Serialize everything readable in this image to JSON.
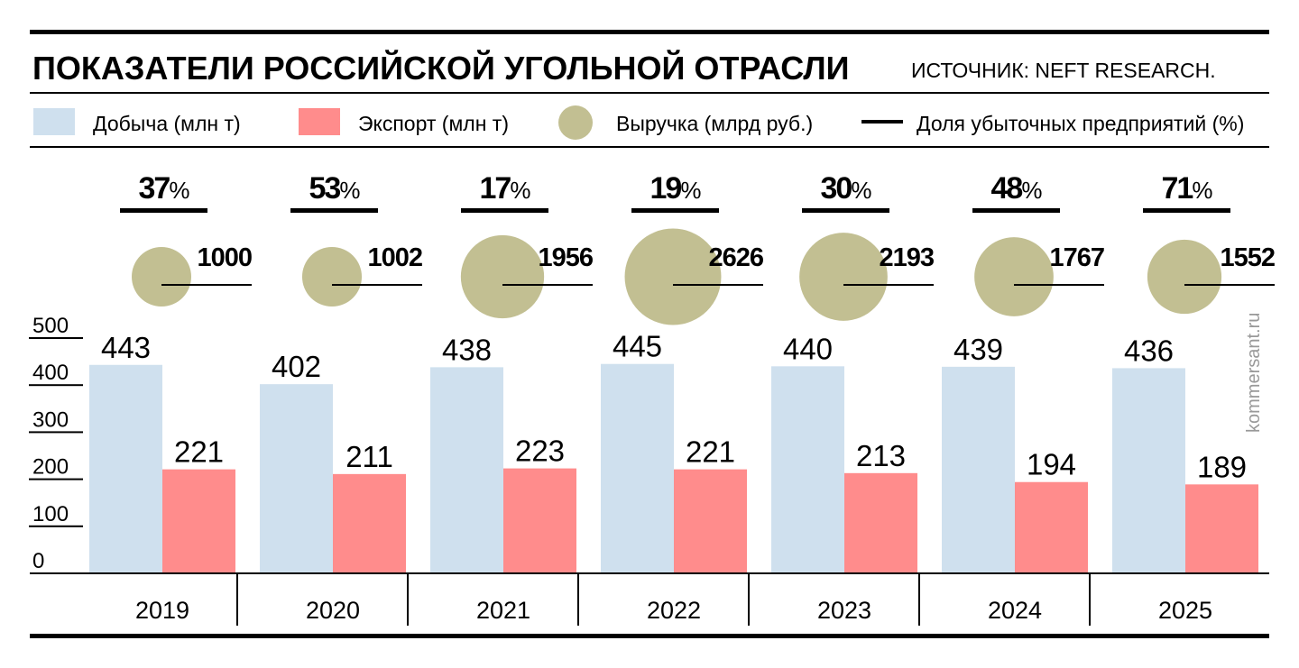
{
  "title": "ПОКАЗАТЕЛИ РОССИЙСКОЙ УГОЛЬНОЙ ОТРАСЛИ",
  "source": "ИСТОЧНИК: NEFT RESEARCH.",
  "watermark": "kommersant.ru",
  "colors": {
    "production": "#cfe0ee",
    "export": "#ff8c8c",
    "revenue": "#c2bf92",
    "line": "#000000"
  },
  "chart_data": {
    "type": "bar",
    "title": "ПОКАЗАТЕЛИ РОССИЙСКОЙ УГОЛЬНОЙ ОТРАСЛИ",
    "categories": [
      "2019",
      "2020",
      "2021",
      "2022",
      "2023",
      "2024",
      "2025"
    ],
    "ylim": [
      0,
      500
    ],
    "yticks": [
      "0",
      "100",
      "200",
      "300",
      "400",
      "500"
    ],
    "legend": [
      {
        "name": "Добыча (млн т)",
        "marker": "square"
      },
      {
        "name": "Экспорт (млн т)",
        "marker": "square"
      },
      {
        "name": "Выручка (млрд руб.)",
        "marker": "circle"
      },
      {
        "name": "Доля убыточных предприятий (%)",
        "marker": "line"
      }
    ],
    "series": [
      {
        "name": "Добыча (млн т)",
        "values": [
          443,
          402,
          438,
          445,
          440,
          439,
          436
        ]
      },
      {
        "name": "Экспорт (млн т)",
        "values": [
          221,
          211,
          223,
          221,
          213,
          194,
          189
        ]
      },
      {
        "name": "Выручка (млрд руб.)",
        "values": [
          1000,
          1002,
          1956,
          2626,
          2193,
          1767,
          1552
        ]
      },
      {
        "name": "Доля убыточных предприятий (%)",
        "values": [
          37,
          53,
          17,
          19,
          30,
          48,
          71
        ],
        "suffix": "%"
      }
    ]
  }
}
